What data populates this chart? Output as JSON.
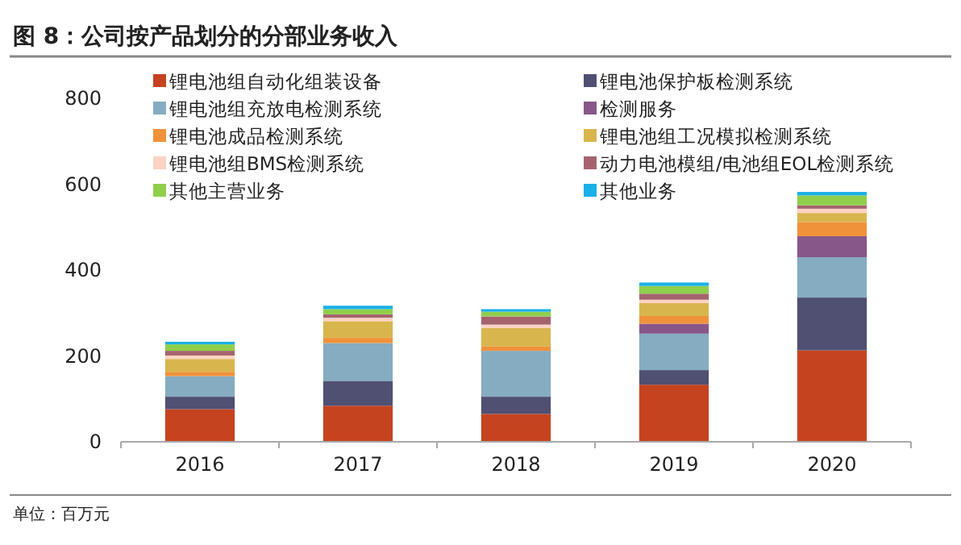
{
  "chart_data": {
    "type": "bar",
    "title": "图 8：公司按产品划分的分部业务收入",
    "stacked": true,
    "legend": "top",
    "categories": [
      "2016",
      "2017",
      "2018",
      "2019",
      "2020"
    ],
    "ylim": [
      0,
      800
    ],
    "yticks": [
      0,
      200,
      400,
      600,
      800
    ],
    "grid": false,
    "series": [
      {
        "name": "锂电池组自动化组装设备",
        "color": "#c5431f",
        "values": [
          76,
          84,
          65,
          133,
          213
        ]
      },
      {
        "name": "锂电池保护板检测系统",
        "color": "#4f5072",
        "values": [
          29,
          58,
          40,
          34,
          123
        ]
      },
      {
        "name": "锂电池组充放电检测系统",
        "color": "#85acc0",
        "values": [
          48,
          88,
          107,
          85,
          94
        ]
      },
      {
        "name": "检测服务",
        "color": "#87578a",
        "values": [
          0,
          0,
          0,
          23,
          49
        ]
      },
      {
        "name": "锂电池成品检测系统",
        "color": "#f0923a",
        "values": [
          10,
          12,
          10,
          18,
          33
        ]
      },
      {
        "name": "锂电池组工况模拟检测系统",
        "color": "#d8b54d",
        "values": [
          30,
          39,
          43,
          30,
          21
        ]
      },
      {
        "name": "锂电池组BMS检测系统",
        "color": "#fcd3c3",
        "values": [
          8,
          8,
          8,
          8,
          10
        ]
      },
      {
        "name": "动力电池模组/电池组EOL检测系统",
        "color": "#a5636e",
        "values": [
          11,
          8,
          19,
          14,
          8
        ]
      },
      {
        "name": "其他主营业务",
        "color": "#8fcf4c",
        "values": [
          15,
          12,
          11,
          18,
          23
        ]
      },
      {
        "name": "其他业务",
        "color": "#1ab0e8",
        "values": [
          6,
          8,
          6,
          8,
          8
        ]
      }
    ],
    "annotations": [
      "单位：百万元"
    ]
  }
}
